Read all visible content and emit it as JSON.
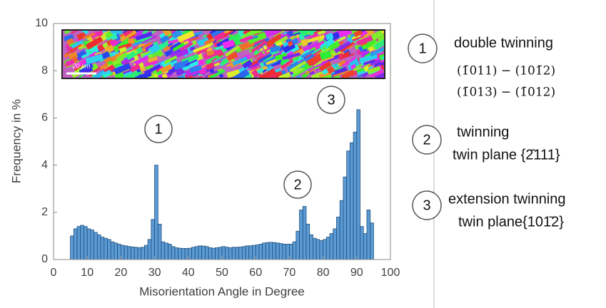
{
  "chart_data": {
    "type": "histogram",
    "xlabel": "Misorientation Angle in Degree",
    "ylabel": "Frequency in %",
    "bins": [
      5,
      6,
      7,
      8,
      9,
      10,
      11,
      12,
      13,
      14,
      15,
      16,
      17,
      18,
      19,
      20,
      21,
      22,
      23,
      24,
      25,
      26,
      27,
      28,
      29,
      30,
      31,
      32,
      33,
      34,
      35,
      36,
      37,
      38,
      39,
      40,
      41,
      42,
      43,
      44,
      45,
      46,
      47,
      48,
      49,
      50,
      51,
      52,
      53,
      54,
      55,
      56,
      57,
      58,
      59,
      60,
      61,
      62,
      63,
      64,
      65,
      66,
      67,
      68,
      69,
      70,
      71,
      72,
      73,
      74,
      75,
      76,
      77,
      78,
      79,
      80,
      81,
      82,
      83,
      84,
      85,
      86,
      87,
      88,
      89,
      90,
      91,
      92,
      93,
      94,
      95
    ],
    "values": [
      1.0,
      1.3,
      1.4,
      1.45,
      1.4,
      1.3,
      1.25,
      1.15,
      1.05,
      0.95,
      0.9,
      0.85,
      0.75,
      0.7,
      0.65,
      0.6,
      0.58,
      0.55,
      0.53,
      0.52,
      0.5,
      0.52,
      0.6,
      0.85,
      1.7,
      4.0,
      1.5,
      0.75,
      0.7,
      0.65,
      0.55,
      0.5,
      0.48,
      0.47,
      0.47,
      0.48,
      0.52,
      0.55,
      0.58,
      0.57,
      0.55,
      0.5,
      0.48,
      0.5,
      0.52,
      0.55,
      0.52,
      0.5,
      0.52,
      0.52,
      0.53,
      0.55,
      0.58,
      0.58,
      0.6,
      0.62,
      0.65,
      0.7,
      0.72,
      0.73,
      0.72,
      0.7,
      0.68,
      0.65,
      0.65,
      0.65,
      0.75,
      1.2,
      2.1,
      2.25,
      1.5,
      1.05,
      0.9,
      0.85,
      0.8,
      0.85,
      0.95,
      1.1,
      1.3,
      1.8,
      2.5,
      3.5,
      4.6,
      4.95,
      5.4,
      6.35,
      1.4,
      1.1,
      2.1,
      1.55
    ],
    "color": "#5b9bd5",
    "xlim": [
      0,
      100
    ],
    "xticks": [
      0,
      10,
      20,
      30,
      40,
      50,
      60,
      70,
      80,
      90,
      100
    ],
    "ylim": [
      0,
      10
    ],
    "yticks": [
      0,
      2,
      4,
      6,
      8,
      10
    ],
    "annotations": [
      "1",
      "2",
      "3"
    ],
    "inset_scale_label": "20 μm"
  },
  "notes": [
    {
      "marker": "1",
      "lines": [
        "double twinning",
        "(1̄011) − (101̄2)",
        "(1̄013) − (1̄012)"
      ]
    },
    {
      "marker": "2",
      "lines": [
        "twinning",
        "twin plane {2̄111}"
      ]
    },
    {
      "marker": "3",
      "lines": [
        "extension twinning",
        "twin plane{101̄2}"
      ]
    }
  ]
}
